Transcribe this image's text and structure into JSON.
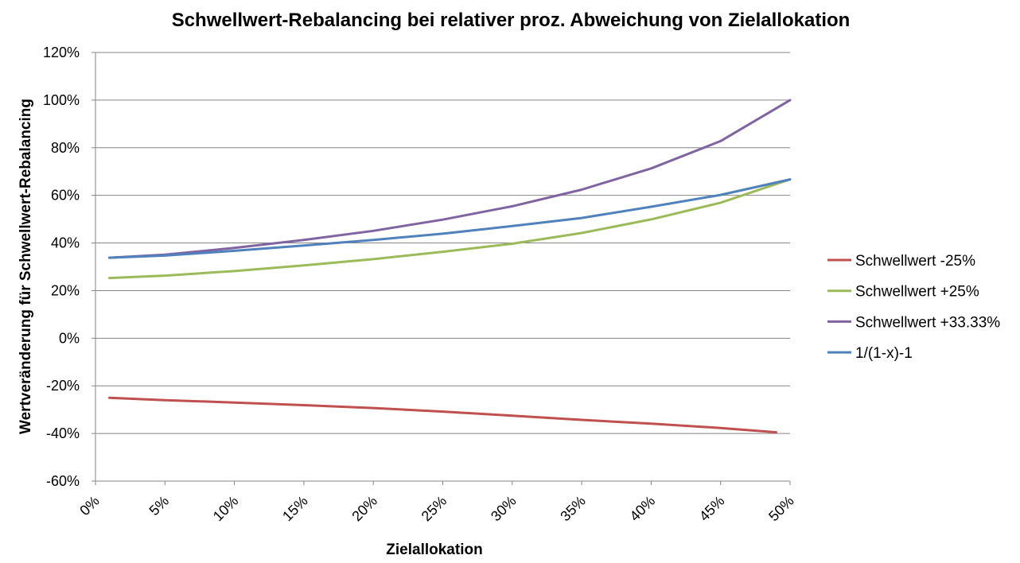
{
  "chart_data": {
    "type": "line",
    "title": "Schwellwert-Rebalancing bei relativer proz. Abweichung von Zielallokation",
    "xlabel": "Zielallokation",
    "ylabel": "Wertveränderung für Schwellwert-Rebalancing",
    "xlim": [
      0,
      50
    ],
    "ylim": [
      -60,
      120
    ],
    "x_ticks": [
      0,
      5,
      10,
      15,
      20,
      25,
      30,
      35,
      40,
      45,
      50
    ],
    "x_tick_labels": [
      "0%",
      "5%",
      "10%",
      "15%",
      "20%",
      "25%",
      "30%",
      "35%",
      "40%",
      "45%",
      "50%"
    ],
    "y_ticks": [
      -60,
      -40,
      -20,
      0,
      20,
      40,
      60,
      80,
      100,
      120
    ],
    "y_tick_labels": [
      "-60%",
      "-40%",
      "-20%",
      "0%",
      "20%",
      "40%",
      "60%",
      "80%",
      "100%",
      "120%"
    ],
    "grid": true,
    "legend_position": "right",
    "series": [
      {
        "name": "Schwellwert -25%",
        "color": "#C0504D",
        "x": [
          1,
          5,
          10,
          15,
          20,
          25,
          30,
          35,
          40,
          45,
          49
        ],
        "values": [
          -25,
          -26,
          -27,
          -28.1,
          -29.3,
          -30.8,
          -32.5,
          -34.3,
          -35.9,
          -37.7,
          -39.5
        ]
      },
      {
        "name": "Schwellwert +25%",
        "color": "#9BBB59",
        "x": [
          1,
          5,
          10,
          15,
          20,
          25,
          30,
          35,
          40,
          45,
          50
        ],
        "values": [
          25.3,
          26.3,
          28.2,
          30.6,
          33.2,
          36.3,
          39.7,
          44.2,
          49.9,
          56.9,
          66.7
        ]
      },
      {
        "name": "Schwellwert +33.33%",
        "color": "#8064A2",
        "x": [
          1,
          5,
          10,
          15,
          20,
          25,
          30,
          35,
          40,
          45,
          50
        ],
        "values": [
          33.8,
          35.1,
          37.9,
          41.3,
          45.1,
          49.8,
          55.4,
          62.4,
          71.3,
          82.8,
          100
        ]
      },
      {
        "name": "1/(1-x)-1",
        "color": "#4F81BD",
        "x": [
          1,
          5,
          10,
          15,
          20,
          25,
          30,
          35,
          40,
          45,
          50
        ],
        "values": [
          33.8,
          34.7,
          36.7,
          38.9,
          41.3,
          43.9,
          47.1,
          50.5,
          55.2,
          60.2,
          66.7
        ]
      }
    ]
  }
}
